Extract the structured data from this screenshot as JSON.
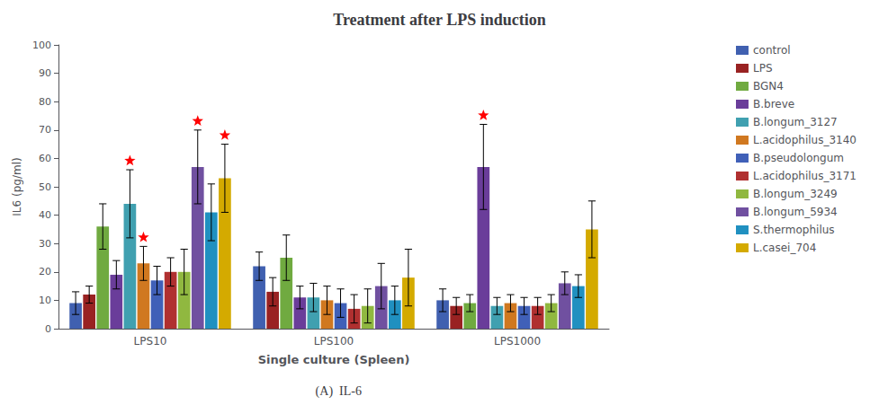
{
  "chart_data": {
    "type": "bar",
    "title": "Treatment after LPS induction",
    "xlabel": "Single culture (Spleen)",
    "ylabel": "IL6 (pg/ml)",
    "annotations": [
      "(A)  IL-6"
    ],
    "categories": [
      "LPS10",
      "LPS100",
      "LPS1000"
    ],
    "series": [
      {
        "name": "control",
        "color": "#4060b0",
        "values": [
          9,
          22,
          10
        ],
        "errors": [
          4,
          5,
          4
        ]
      },
      {
        "name": "LPS",
        "color": "#992222",
        "values": [
          12,
          13,
          8
        ],
        "errors": [
          3,
          5,
          3
        ]
      },
      {
        "name": "BGN4",
        "color": "#70aa40",
        "values": [
          36,
          25,
          9
        ],
        "errors": [
          8,
          8,
          3
        ]
      },
      {
        "name": "B.breve",
        "color": "#6a3d9a",
        "values": [
          19,
          11,
          57
        ],
        "errors": [
          5,
          4,
          15
        ]
      },
      {
        "name": "B.longum_3127",
        "color": "#40a0b0",
        "values": [
          44,
          11,
          8
        ],
        "errors": [
          12,
          5,
          3
        ]
      },
      {
        "name": "L.acidophilus_3140",
        "color": "#d07820",
        "values": [
          23,
          10,
          9
        ],
        "errors": [
          6,
          5,
          3
        ]
      },
      {
        "name": "B.pseudolongum",
        "color": "#4060b8",
        "values": [
          17,
          9,
          8
        ],
        "errors": [
          5,
          5,
          3
        ]
      },
      {
        "name": "L.acidophilus_3171",
        "color": "#b03030",
        "values": [
          20,
          7,
          8
        ],
        "errors": [
          5,
          5,
          3
        ]
      },
      {
        "name": "B.longum_3249",
        "color": "#90b840",
        "values": [
          20,
          8,
          9
        ],
        "errors": [
          8,
          6,
          3
        ]
      },
      {
        "name": "B.longum_5934",
        "color": "#7050a0",
        "values": [
          57,
          15,
          16
        ],
        "errors": [
          13,
          8,
          4
        ]
      },
      {
        "name": "S.thermophilus",
        "color": "#2090c0",
        "values": [
          41,
          10,
          15
        ],
        "errors": [
          10,
          5,
          4
        ]
      },
      {
        "name": "L.casei_704",
        "color": "#d4aa00",
        "values": [
          53,
          18,
          35
        ],
        "errors": [
          12,
          10,
          10
        ]
      }
    ],
    "star_markers": [
      {
        "category": "LPS10",
        "series": "B.longum_3127",
        "marker": "star",
        "color": "red"
      },
      {
        "category": "LPS10",
        "series": "L.acidophilus_3140",
        "marker": "star",
        "color": "red"
      },
      {
        "category": "LPS10",
        "series": "B.longum_5934",
        "marker": "star",
        "color": "red"
      },
      {
        "category": "LPS10",
        "series": "L.casei_704",
        "marker": "star",
        "color": "red"
      },
      {
        "category": "LPS1000",
        "series": "B.breve",
        "marker": "star",
        "color": "red"
      }
    ],
    "ylim": [
      0,
      100
    ],
    "yticks": [
      0,
      10,
      20,
      30,
      40,
      50,
      60,
      70,
      80,
      90,
      100
    ],
    "grid": false,
    "legend": "right"
  }
}
